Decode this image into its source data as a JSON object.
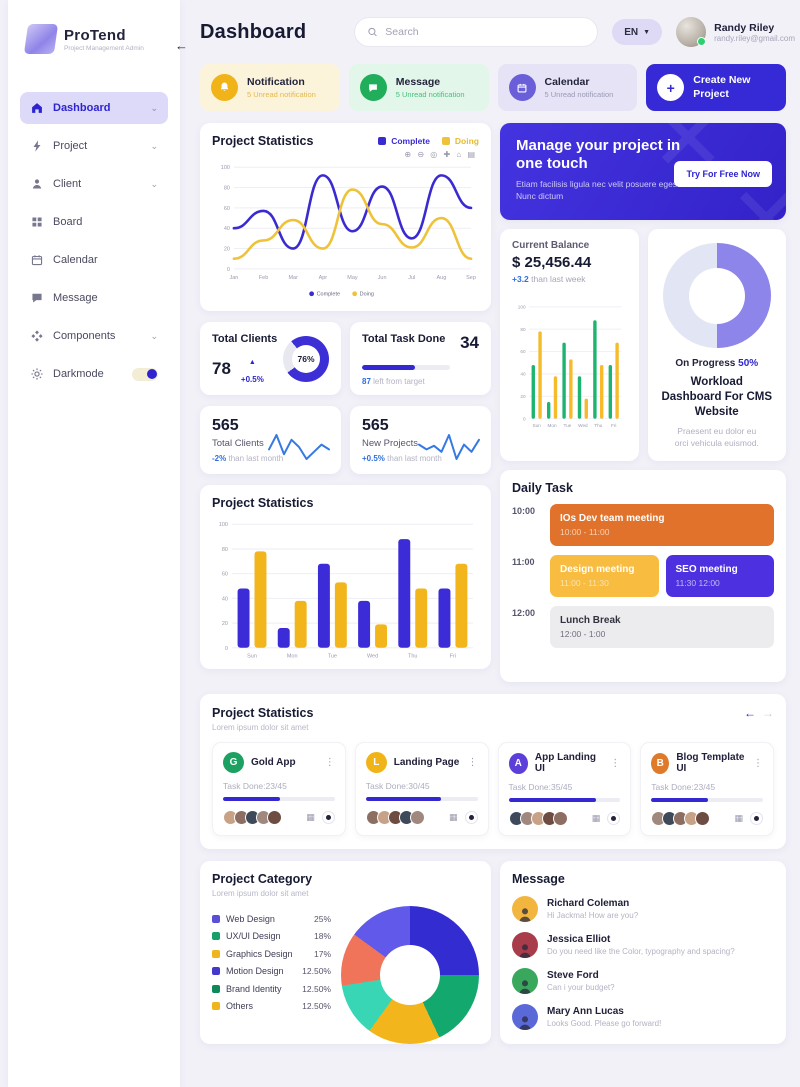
{
  "icons": {
    "chevron_down": "⌄",
    "kebab": "⋮",
    "arrow_left": "←",
    "arrow_right": "→",
    "up_triangle": "▲",
    "dropdown": "▼",
    "plus": "+",
    "collapse": "←",
    "chart_toolbar": "⊕ ⊖ ◎ ✚ ⌂ ▤",
    "close_x": "✕"
  },
  "sidebar": {
    "brand": {
      "name": "ProTend",
      "subtitle": "Project Management Admin"
    },
    "items": [
      {
        "label": "Dashboard"
      },
      {
        "label": "Project"
      },
      {
        "label": "Client"
      },
      {
        "label": "Board"
      },
      {
        "label": "Calendar"
      },
      {
        "label": "Message"
      },
      {
        "label": "Components"
      },
      {
        "label": "Darkmode"
      }
    ]
  },
  "header": {
    "title": "Dashboard",
    "search_placeholder": "Search",
    "lang": "EN",
    "user": {
      "name": "Randy Riley",
      "email": "randy.riley@gmail.com"
    }
  },
  "quick_cards": {
    "notification": {
      "title": "Notification",
      "subtitle": "5 Unread notification",
      "bg": "#fcf4da",
      "icon_bg": "#f0b419",
      "sub_color": "#e4b74e"
    },
    "message": {
      "title": "Message",
      "subtitle": "5 Unread notification",
      "bg": "#e2f6e9",
      "icon_bg": "#21ae5b",
      "sub_color": "#47bf7e"
    },
    "calendar": {
      "title": "Calendar",
      "subtitle": "5 Unread notification",
      "bg": "#e5e3f5",
      "icon_bg": "#6a5fd8",
      "sub_color": "#9b9ab8"
    },
    "create": {
      "title": "Create New Project",
      "bg": "#3629d6"
    }
  },
  "line_card": {
    "title": "Project Statistics"
  },
  "banner": {
    "title": "Manage your project in one touch",
    "body": "Etiam facilisis ligula nec velit posuere egestas. Nunc dictum",
    "cta": "Try For Free Now"
  },
  "balance": {
    "title": "Current Balance",
    "amount": "$ 25,456.44",
    "delta": "+3.2",
    "delta_note": "than last week"
  },
  "progress_card": {
    "label": "On Progress",
    "pct": "50%",
    "title": "Workload Dashboard For CMS Website",
    "body": "Praesent eu dolor eu orci vehicula euismod."
  },
  "total_clients": {
    "title": "Total Clients",
    "value": "78",
    "delta": "+0.5%",
    "donut_label": "76%"
  },
  "task_done": {
    "title": "Total Task Done",
    "value": "34",
    "note_value": "87",
    "note_rest": "left from target",
    "pct": 60
  },
  "counter_cards": [
    {
      "value": "565",
      "label": "Total Clients",
      "delta": "-2%",
      "note": "than last month"
    },
    {
      "value": "565",
      "label": "New Projects",
      "delta": "+0.5%",
      "note": "than last month"
    }
  ],
  "bar_card": {
    "title": "Project Statistics"
  },
  "daily_task": {
    "title": "Daily Task",
    "rows": [
      {
        "time": "10:00",
        "events": [
          {
            "title": "IOs Dev team meeting",
            "time": "10:00 - 11:00",
            "bg": "#e0722b",
            "fg": "#ffffff",
            "sub_fg": "#f6d2b8"
          }
        ]
      },
      {
        "time": "11:00",
        "events": [
          {
            "title": "Design meeting",
            "time": "11:00 - 11:30",
            "bg": "#f8bc40",
            "fg": "#ffffff",
            "sub_fg": "#fbe3ae"
          },
          {
            "title": "SEO meeting",
            "time": "11:30 12:00",
            "bg": "#4d31e0",
            "fg": "#ffffff",
            "sub_fg": "#c3b8f5"
          }
        ]
      },
      {
        "time": "12:00",
        "events": [
          {
            "title": "Lunch Break",
            "time": "12:00 - 1:00",
            "bg": "#ececee",
            "fg": "#32323f",
            "sub_fg": "#6f6f80"
          }
        ]
      }
    ]
  },
  "carousel": {
    "title": "Project Statistics",
    "subtitle": "Lorem ipsum dolor sit amet",
    "projects": [
      {
        "initial": "G",
        "icon_bg": "#1ca163",
        "name": "Gold App",
        "task": "Task Done:23/45",
        "pct": 51,
        "avatars": [
          "#c8a286",
          "#8d6e63",
          "#3e4a5a",
          "#a1887f",
          "#6d4c41"
        ]
      },
      {
        "initial": "L",
        "icon_bg": "#f0b419",
        "name": "Landing Page",
        "task": "Task Done:30/45",
        "pct": 67,
        "avatars": [
          "#8d6e63",
          "#c8a286",
          "#6d4c41",
          "#3e4a5a",
          "#a1887f"
        ]
      },
      {
        "initial": "A",
        "icon_bg": "#5b3fd8",
        "name": "App Landing UI",
        "task": "Task Done:35/45",
        "pct": 78,
        "avatars": [
          "#3e4a5a",
          "#a1887f",
          "#c8a286",
          "#6d4c41",
          "#8d6e63"
        ]
      },
      {
        "initial": "B",
        "icon_bg": "#e07a2b",
        "name": "Blog Template UI",
        "task": "Task Done:23/45",
        "pct": 51,
        "avatars": [
          "#a1887f",
          "#3e4a5a",
          "#8d6e63",
          "#c8a286",
          "#6d4c41"
        ]
      }
    ]
  },
  "category": {
    "title": "Project Category",
    "subtitle": "Lorem ipsum dolor sit amet",
    "legend": [
      {
        "label": "Web Design",
        "pct": "25%",
        "swatch": "#5a4fd8"
      },
      {
        "label": "UX/UI Design",
        "pct": "18%",
        "swatch": "#16a06a"
      },
      {
        "label": "Graphics Design",
        "pct": "17%",
        "swatch": "#f0b41c"
      },
      {
        "label": "Motion Design",
        "pct": "12.50%",
        "swatch": "#4338cc"
      },
      {
        "label": "Brand Identity",
        "pct": "12.50%",
        "swatch": "#0e8a5a"
      },
      {
        "label": "Others",
        "pct": "12.50%",
        "swatch": "#f0b41c"
      }
    ]
  },
  "messages": {
    "title": "Message",
    "items": [
      {
        "name": "Richard Coleman",
        "text": "Hi Jackma! How are you?",
        "av_bg": "#f2b63f"
      },
      {
        "name": "Jessica Elliot",
        "text": "Do you need like the Color, typography and spacing?",
        "av_bg": "#a93c4a"
      },
      {
        "name": "Steve Ford",
        "text": "Can i your budget?",
        "av_bg": "#3aa85c"
      },
      {
        "name": "Mary Ann Lucas",
        "text": "Looks Good. Please go forward!",
        "av_bg": "#5a68d8"
      }
    ]
  },
  "chart_data": [
    {
      "id": "project-stats-line",
      "type": "line",
      "title": "Project Statistics",
      "x": [
        "Jan",
        "Feb",
        "Mar",
        "Apr",
        "May",
        "Jun",
        "Jul",
        "Aug",
        "Sep"
      ],
      "ylim": [
        0,
        100
      ],
      "yticks": [
        0,
        20,
        40,
        60,
        80,
        100
      ],
      "legend_bottom": true,
      "series": [
        {
          "name": "Complete",
          "color": "#3a2bd0",
          "values": [
            40,
            57,
            20,
            92,
            37,
            81,
            30,
            92,
            60
          ]
        },
        {
          "name": "Doing",
          "color": "#eec33a",
          "values": [
            10,
            28,
            48,
            20,
            78,
            44,
            21,
            50,
            10
          ]
        }
      ]
    },
    {
      "id": "balance-bars",
      "type": "bar",
      "title": "Current Balance",
      "categories": [
        "Sun",
        "Mon",
        "Tue",
        "Wed",
        "Thu",
        "Fri"
      ],
      "ylim": [
        0,
        100
      ],
      "yticks": [
        0,
        20,
        40,
        60,
        80,
        100
      ],
      "series": [
        {
          "name": "green",
          "color": "#1db470",
          "values": [
            48,
            15,
            68,
            38,
            88,
            48
          ]
        },
        {
          "name": "yellow",
          "color": "#f5bb2a",
          "values": [
            78,
            38,
            53,
            18,
            48,
            68
          ]
        }
      ]
    },
    {
      "id": "project-stats-bar",
      "type": "bar",
      "title": "Project Statistics",
      "categories": [
        "Sun",
        "Mon",
        "Tue",
        "Wed",
        "Thu",
        "Fri"
      ],
      "ylim": [
        0,
        100
      ],
      "yticks": [
        0,
        20,
        40,
        60,
        80,
        100
      ],
      "series": [
        {
          "name": "blue",
          "color": "#3c2cd8",
          "values": [
            48,
            16,
            68,
            38,
            88,
            48
          ]
        },
        {
          "name": "yellow",
          "color": "#f2b51c",
          "values": [
            78,
            38,
            53,
            19,
            48,
            68
          ]
        }
      ]
    },
    {
      "id": "on-progress-donut",
      "type": "pie",
      "label": "On Progress",
      "value": 50,
      "color": "#8d85ea",
      "track": "#e2e5f3"
    },
    {
      "id": "clients-donut",
      "type": "pie",
      "label": "Total Clients",
      "value": 76,
      "color": "#3c2fd6",
      "track": "#e8e8f1"
    },
    {
      "id": "category-pie",
      "type": "pie",
      "slices": [
        {
          "label": "Web Design",
          "value": 25,
          "color": "#332cd1"
        },
        {
          "label": "UX/UI Design",
          "value": 18,
          "color": "#13a96e"
        },
        {
          "label": "Graphics Design",
          "value": 17,
          "color": "#f2b51c"
        },
        {
          "label": "Motion Design",
          "value": 12.5,
          "color": "#38d6b5"
        },
        {
          "label": "Brand Identity",
          "value": 12.5,
          "color": "#f0745a"
        },
        {
          "label": "Others",
          "value": 12.5,
          "color": "#6059ea"
        }
      ]
    },
    {
      "id": "clients-spark",
      "type": "line",
      "color": "#3779e3",
      "values": [
        14,
        26,
        10,
        22,
        16,
        6,
        12,
        18,
        14
      ]
    },
    {
      "id": "projects-spark",
      "type": "line",
      "color": "#3779e3",
      "values": [
        16,
        12,
        15,
        10,
        24,
        4,
        16,
        10,
        20
      ]
    }
  ]
}
